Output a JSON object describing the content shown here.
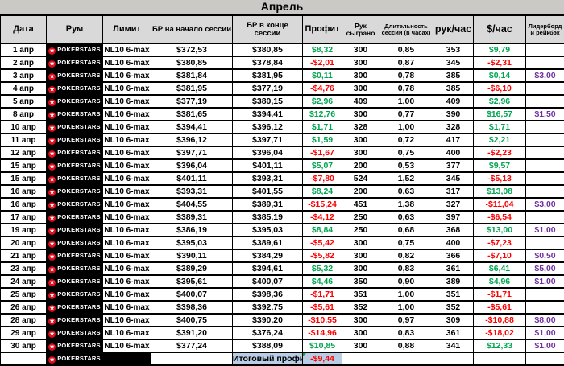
{
  "title": "Апрель",
  "columns": [
    {
      "key": "date",
      "label": "Дата"
    },
    {
      "key": "room",
      "label": "Рум"
    },
    {
      "key": "limit",
      "label": "Лимит"
    },
    {
      "key": "br_start",
      "label": "БР на начало сессии"
    },
    {
      "key": "br_end",
      "label": "БР в конце сессии"
    },
    {
      "key": "profit",
      "label": "Профит"
    },
    {
      "key": "hands",
      "label": "Рук сыграно"
    },
    {
      "key": "duration",
      "label": "Длительность сессии (в часах)"
    },
    {
      "key": "hands_per_hour",
      "label": "рук/час"
    },
    {
      "key": "usd_per_hour",
      "label": "$/час"
    },
    {
      "key": "leaderboard",
      "label": "Лидерборд и рейкбэк"
    }
  ],
  "room_logo": {
    "name": "PokerStars",
    "star": "★",
    "text": "POKERSTARS"
  },
  "rows": [
    {
      "date": "1 апр",
      "limit": "NL10 6-max",
      "br_start": "$372,53",
      "br_end": "$380,85",
      "profit": "$8,32",
      "hands": "300",
      "duration": "0,85",
      "hands_per_hour": "353",
      "usd_per_hour": "$9,79",
      "leaderboard": ""
    },
    {
      "date": "2 апр",
      "limit": "NL10 6-max",
      "br_start": "$380,85",
      "br_end": "$378,84",
      "profit": "-$2,01",
      "hands": "300",
      "duration": "0,87",
      "hands_per_hour": "345",
      "usd_per_hour": "-$2,31",
      "leaderboard": ""
    },
    {
      "date": "3 апр",
      "limit": "NL10 6-max",
      "br_start": "$381,84",
      "br_end": "$381,95",
      "profit": "$0,11",
      "hands": "300",
      "duration": "0,78",
      "hands_per_hour": "385",
      "usd_per_hour": "$0,14",
      "leaderboard": "$3,00"
    },
    {
      "date": "4 апр",
      "limit": "NL10 6-max",
      "br_start": "$381,95",
      "br_end": "$377,19",
      "profit": "-$4,76",
      "hands": "300",
      "duration": "0,78",
      "hands_per_hour": "385",
      "usd_per_hour": "-$6,10",
      "leaderboard": ""
    },
    {
      "date": "5 апр",
      "limit": "NL10 6-max",
      "br_start": "$377,19",
      "br_end": "$380,15",
      "profit": "$2,96",
      "hands": "409",
      "duration": "1,00",
      "hands_per_hour": "409",
      "usd_per_hour": "$2,96",
      "leaderboard": ""
    },
    {
      "date": "8 апр",
      "limit": "NL10 6-max",
      "br_start": "$381,65",
      "br_end": "$394,41",
      "profit": "$12,76",
      "hands": "300",
      "duration": "0,77",
      "hands_per_hour": "390",
      "usd_per_hour": "$16,57",
      "leaderboard": "$1,50"
    },
    {
      "date": "10 апр",
      "limit": "NL10 6-max",
      "br_start": "$394,41",
      "br_end": "$396,12",
      "profit": "$1,71",
      "hands": "328",
      "duration": "1,00",
      "hands_per_hour": "328",
      "usd_per_hour": "$1,71",
      "leaderboard": ""
    },
    {
      "date": "11 апр",
      "limit": "NL10 6-max",
      "br_start": "$396,12",
      "br_end": "$397,71",
      "profit": "$1,59",
      "hands": "300",
      "duration": "0,72",
      "hands_per_hour": "417",
      "usd_per_hour": "$2,21",
      "leaderboard": ""
    },
    {
      "date": "12 апр",
      "limit": "NL10 6-max",
      "br_start": "$397,71",
      "br_end": "$396,04",
      "profit": "-$1,67",
      "hands": "300",
      "duration": "0,75",
      "hands_per_hour": "400",
      "usd_per_hour": "-$2,23",
      "leaderboard": ""
    },
    {
      "date": "15 апр",
      "limit": "NL10 6-max",
      "br_start": "$396,04",
      "br_end": "$401,11",
      "profit": "$5,07",
      "hands": "200",
      "duration": "0,53",
      "hands_per_hour": "377",
      "usd_per_hour": "$9,57",
      "leaderboard": ""
    },
    {
      "date": "15 апр",
      "limit": "NL10 6-max",
      "br_start": "$401,11",
      "br_end": "$393,31",
      "profit": "-$7,80",
      "hands": "524",
      "duration": "1,52",
      "hands_per_hour": "345",
      "usd_per_hour": "-$5,13",
      "leaderboard": ""
    },
    {
      "date": "16 апр",
      "limit": "NL10 6-max",
      "br_start": "$393,31",
      "br_end": "$401,55",
      "profit": "$8,24",
      "hands": "200",
      "duration": "0,63",
      "hands_per_hour": "317",
      "usd_per_hour": "$13,08",
      "leaderboard": ""
    },
    {
      "date": "16 апр",
      "limit": "NL10 6-max",
      "br_start": "$404,55",
      "br_end": "$389,31",
      "profit": "-$15,24",
      "hands": "451",
      "duration": "1,38",
      "hands_per_hour": "327",
      "usd_per_hour": "-$11,04",
      "leaderboard": "$3,00"
    },
    {
      "date": "17 апр",
      "limit": "NL10 6-max",
      "br_start": "$389,31",
      "br_end": "$385,19",
      "profit": "-$4,12",
      "hands": "250",
      "duration": "0,63",
      "hands_per_hour": "397",
      "usd_per_hour": "-$6,54",
      "leaderboard": ""
    },
    {
      "date": "19 апр",
      "limit": "NL10 6-max",
      "br_start": "$386,19",
      "br_end": "$395,03",
      "profit": "$8,84",
      "hands": "250",
      "duration": "0,68",
      "hands_per_hour": "368",
      "usd_per_hour": "$13,00",
      "leaderboard": "$1,00"
    },
    {
      "date": "20 апр",
      "limit": "NL10 6-max",
      "br_start": "$395,03",
      "br_end": "$389,61",
      "profit": "-$5,42",
      "hands": "300",
      "duration": "0,75",
      "hands_per_hour": "400",
      "usd_per_hour": "-$7,23",
      "leaderboard": ""
    },
    {
      "date": "21 апр",
      "limit": "NL10 6-max",
      "br_start": "$390,11",
      "br_end": "$384,29",
      "profit": "-$5,82",
      "hands": "300",
      "duration": "0,82",
      "hands_per_hour": "366",
      "usd_per_hour": "-$7,10",
      "leaderboard": "$0,50"
    },
    {
      "date": "23 апр",
      "limit": "NL10 6-max",
      "br_start": "$389,29",
      "br_end": "$394,61",
      "profit": "$5,32",
      "hands": "300",
      "duration": "0,83",
      "hands_per_hour": "361",
      "usd_per_hour": "$6,41",
      "leaderboard": "$5,00"
    },
    {
      "date": "24 апр",
      "limit": "NL10 6-max",
      "br_start": "$395,61",
      "br_end": "$400,07",
      "profit": "$4,46",
      "hands": "350",
      "duration": "0,90",
      "hands_per_hour": "389",
      "usd_per_hour": "$4,96",
      "leaderboard": "$1,00"
    },
    {
      "date": "25 апр",
      "limit": "NL10 6-max",
      "br_start": "$400,07",
      "br_end": "$398,36",
      "profit": "-$1,71",
      "hands": "351",
      "duration": "1,00",
      "hands_per_hour": "351",
      "usd_per_hour": "-$1,71",
      "leaderboard": ""
    },
    {
      "date": "26 апр",
      "limit": "NL10 6-max",
      "br_start": "$398,36",
      "br_end": "$392,75",
      "profit": "-$5,61",
      "hands": "352",
      "duration": "1,00",
      "hands_per_hour": "352",
      "usd_per_hour": "-$5,61",
      "leaderboard": ""
    },
    {
      "date": "28 апр",
      "limit": "NL10 6-max",
      "br_start": "$400,75",
      "br_end": "$390,20",
      "profit": "-$10,55",
      "hands": "300",
      "duration": "0,97",
      "hands_per_hour": "309",
      "usd_per_hour": "-$10,88",
      "leaderboard": "$8,00"
    },
    {
      "date": "29 апр",
      "limit": "NL10 6-max",
      "br_start": "$391,20",
      "br_end": "$376,24",
      "profit": "-$14,96",
      "hands": "300",
      "duration": "0,83",
      "hands_per_hour": "361",
      "usd_per_hour": "-$18,02",
      "leaderboard": "$1,00"
    },
    {
      "date": "30 апр",
      "limit": "NL10 6-max",
      "br_start": "$377,24",
      "br_end": "$388,09",
      "profit": "$10,85",
      "hands": "300",
      "duration": "0,88",
      "hands_per_hour": "341",
      "usd_per_hour": "$12,33",
      "leaderboard": "$1,00"
    }
  ],
  "total": {
    "label": "Итоговый профит:",
    "value": "-$9,44"
  },
  "colors": {
    "positive": "#00a550",
    "negative": "#fe0000",
    "leaderboard": "#7030a0",
    "total_bg": "#b9cde5",
    "header_bg": "#d9d9d9",
    "room_bg": "#000000",
    "room_logo_red": "#e00a19"
  }
}
